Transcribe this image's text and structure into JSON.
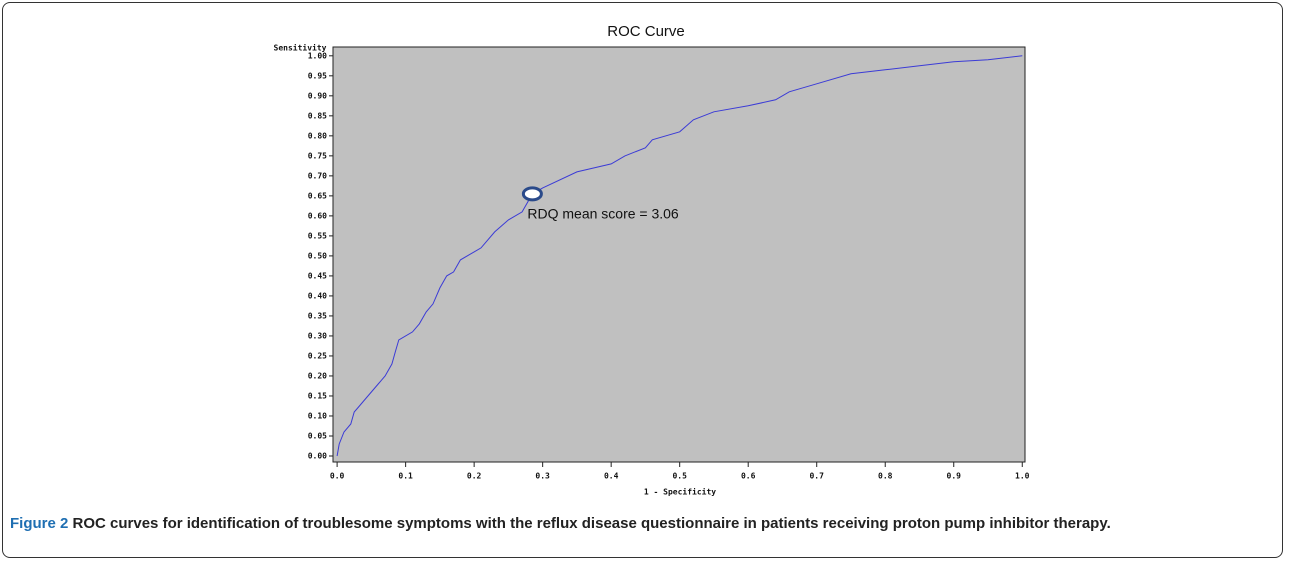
{
  "chart_data": {
    "type": "line",
    "title": "ROC Curve",
    "y_label": "Sensitivity",
    "x_label": "1 - Specificity",
    "annotation": "RDQ mean score = 3.06",
    "marker": {
      "x": 0.285,
      "y": 0.655
    },
    "caption_label": "Figure 2",
    "caption": "ROC curves for identification of troublesome symptoms with the reflux disease questionnaire in patients receiving proton pump inhibitor therapy.",
    "x": [
      0,
      0.003,
      0.01,
      0.02,
      0.025,
      0.03,
      0.04,
      0.06,
      0.07,
      0.08,
      0.085,
      0.09,
      0.11,
      0.12,
      0.13,
      0.14,
      0.15,
      0.16,
      0.17,
      0.18,
      0.2,
      0.21,
      0.23,
      0.25,
      0.27,
      0.285,
      0.3,
      0.35,
      0.4,
      0.42,
      0.45,
      0.46,
      0.5,
      0.52,
      0.55,
      0.6,
      0.64,
      0.66,
      0.7,
      0.75,
      0.8,
      0.85,
      0.9,
      0.95,
      1.0
    ],
    "series": [
      {
        "color": "#3b3bd6",
        "values": [
          0,
          0.03,
          0.06,
          0.08,
          0.11,
          0.12,
          0.14,
          0.18,
          0.2,
          0.23,
          0.26,
          0.29,
          0.31,
          0.33,
          0.36,
          0.38,
          0.42,
          0.45,
          0.46,
          0.49,
          0.51,
          0.52,
          0.56,
          0.59,
          0.61,
          0.655,
          0.67,
          0.71,
          0.73,
          0.75,
          0.77,
          0.79,
          0.81,
          0.84,
          0.86,
          0.875,
          0.89,
          0.91,
          0.93,
          0.955,
          0.965,
          0.975,
          0.985,
          0.99,
          1.0
        ]
      }
    ],
    "xlim": [
      -0.006,
      1.004
    ],
    "ylim": [
      -0.015,
      1.022
    ],
    "xticks": [
      {
        "value": 0,
        "label": "0.0"
      },
      0.1,
      0.2,
      0.3,
      0.4,
      0.5,
      0.6,
      0.7,
      0.8,
      0.9,
      {
        "value": 1,
        "label": "1.0"
      }
    ],
    "yticks": [
      {
        "value": 0,
        "label": "0.00"
      },
      0.05,
      {
        "value": 0.1,
        "label": "0.10"
      },
      0.15,
      {
        "value": 0.2,
        "label": "0.20"
      },
      0.25,
      {
        "value": 0.3,
        "label": "0.30"
      },
      0.35,
      {
        "value": 0.4,
        "label": "0.40"
      },
      0.45,
      {
        "value": 0.5,
        "label": "0.50"
      },
      0.55,
      {
        "value": 0.6,
        "label": "0.60"
      },
      0.65,
      {
        "value": 0.7,
        "label": "0.70"
      },
      0.75,
      {
        "value": 0.8,
        "label": "0.80"
      },
      0.85,
      {
        "value": 0.9,
        "label": "0.90"
      },
      0.95,
      {
        "value": 1,
        "label": "1.00"
      }
    ],
    "plot_color": "#c0c0c0"
  }
}
